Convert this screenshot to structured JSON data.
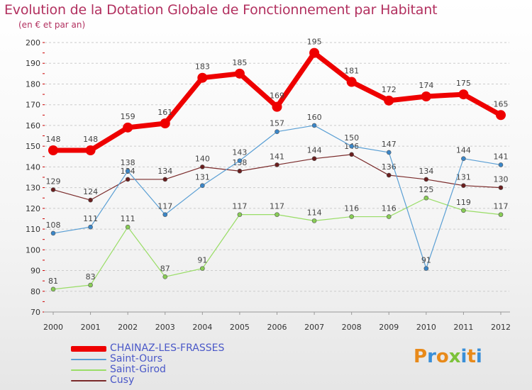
{
  "title": "Evolution de la Dotation Globale de Fonctionnement par Habitant",
  "subtitle": "(en € et par an)",
  "logo": {
    "text": "Proxiti"
  },
  "chart_data": {
    "type": "line",
    "title": "Evolution de la Dotation Globale de Fonctionnement par Habitant",
    "subtitle": "(en € et par an)",
    "x": [
      "2000",
      "2001",
      "2002",
      "2003",
      "2004",
      "2005",
      "2006",
      "2007",
      "2008",
      "2009",
      "2010",
      "2011",
      "2012"
    ],
    "xlabel": "",
    "ylabel": "",
    "ylim": [
      70,
      200
    ],
    "yticks": [
      70,
      80,
      90,
      100,
      110,
      120,
      130,
      140,
      150,
      160,
      170,
      180,
      190,
      200
    ],
    "grid": "horizontal dashed",
    "legend_position": "bottom-left",
    "series": [
      {
        "name": "CHAINAZ-LES-FRASSES",
        "color": "#ee0000",
        "values": [
          148,
          148,
          159,
          161,
          183,
          185,
          169,
          195,
          181,
          172,
          174,
          175,
          165
        ]
      },
      {
        "name": "Saint-Ours",
        "color": "#5a9fd4",
        "values": [
          108,
          111,
          138,
          117,
          131,
          143,
          157,
          160,
          150,
          147,
          91,
          144,
          141
        ]
      },
      {
        "name": "Saint-Girod",
        "color": "#99dd66",
        "values": [
          81,
          83,
          111,
          87,
          91,
          117,
          117,
          114,
          116,
          116,
          125,
          119,
          117
        ]
      },
      {
        "name": "Cusy",
        "color": "#7a2a2a",
        "values": [
          129,
          124,
          134,
          134,
          140,
          138,
          141,
          144,
          146,
          136,
          134,
          131,
          130
        ]
      }
    ]
  }
}
